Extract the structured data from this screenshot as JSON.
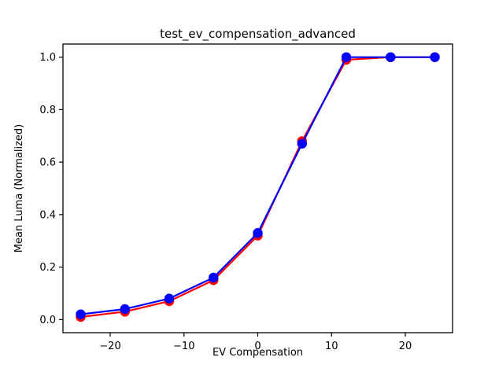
{
  "figure": {
    "background_color": "#ffffff",
    "spine_color": "#000000"
  },
  "chart_data": {
    "type": "line",
    "title": "test_ev_compensation_advanced",
    "xlabel": "EV Compensation",
    "ylabel": "Mean Luma (Normalized)",
    "x": [
      -24,
      -18,
      -12,
      -6,
      0,
      6,
      12,
      18,
      24
    ],
    "series": [
      {
        "name": "red-series",
        "color": "#ff0000",
        "marker": "circle",
        "values": [
          0.01,
          0.03,
          0.07,
          0.15,
          0.32,
          0.68,
          0.99,
          1.0,
          1.0
        ]
      },
      {
        "name": "blue-series",
        "color": "#0000ff",
        "marker": "circle",
        "values": [
          0.02,
          0.04,
          0.08,
          0.16,
          0.33,
          0.67,
          1.0,
          1.0,
          1.0
        ]
      }
    ],
    "xticks": [
      -20,
      -10,
      0,
      10,
      20
    ],
    "xtick_labels": [
      "−20",
      "−10",
      "0",
      "10",
      "20"
    ],
    "yticks": [
      0.0,
      0.2,
      0.4,
      0.6,
      0.8,
      1.0
    ],
    "ytick_labels": [
      "0.0",
      "0.2",
      "0.4",
      "0.6",
      "0.8",
      "1.0"
    ],
    "xlim": [
      -26.4,
      26.4
    ],
    "ylim": [
      -0.05,
      1.05
    ],
    "grid": false,
    "legend": false
  }
}
